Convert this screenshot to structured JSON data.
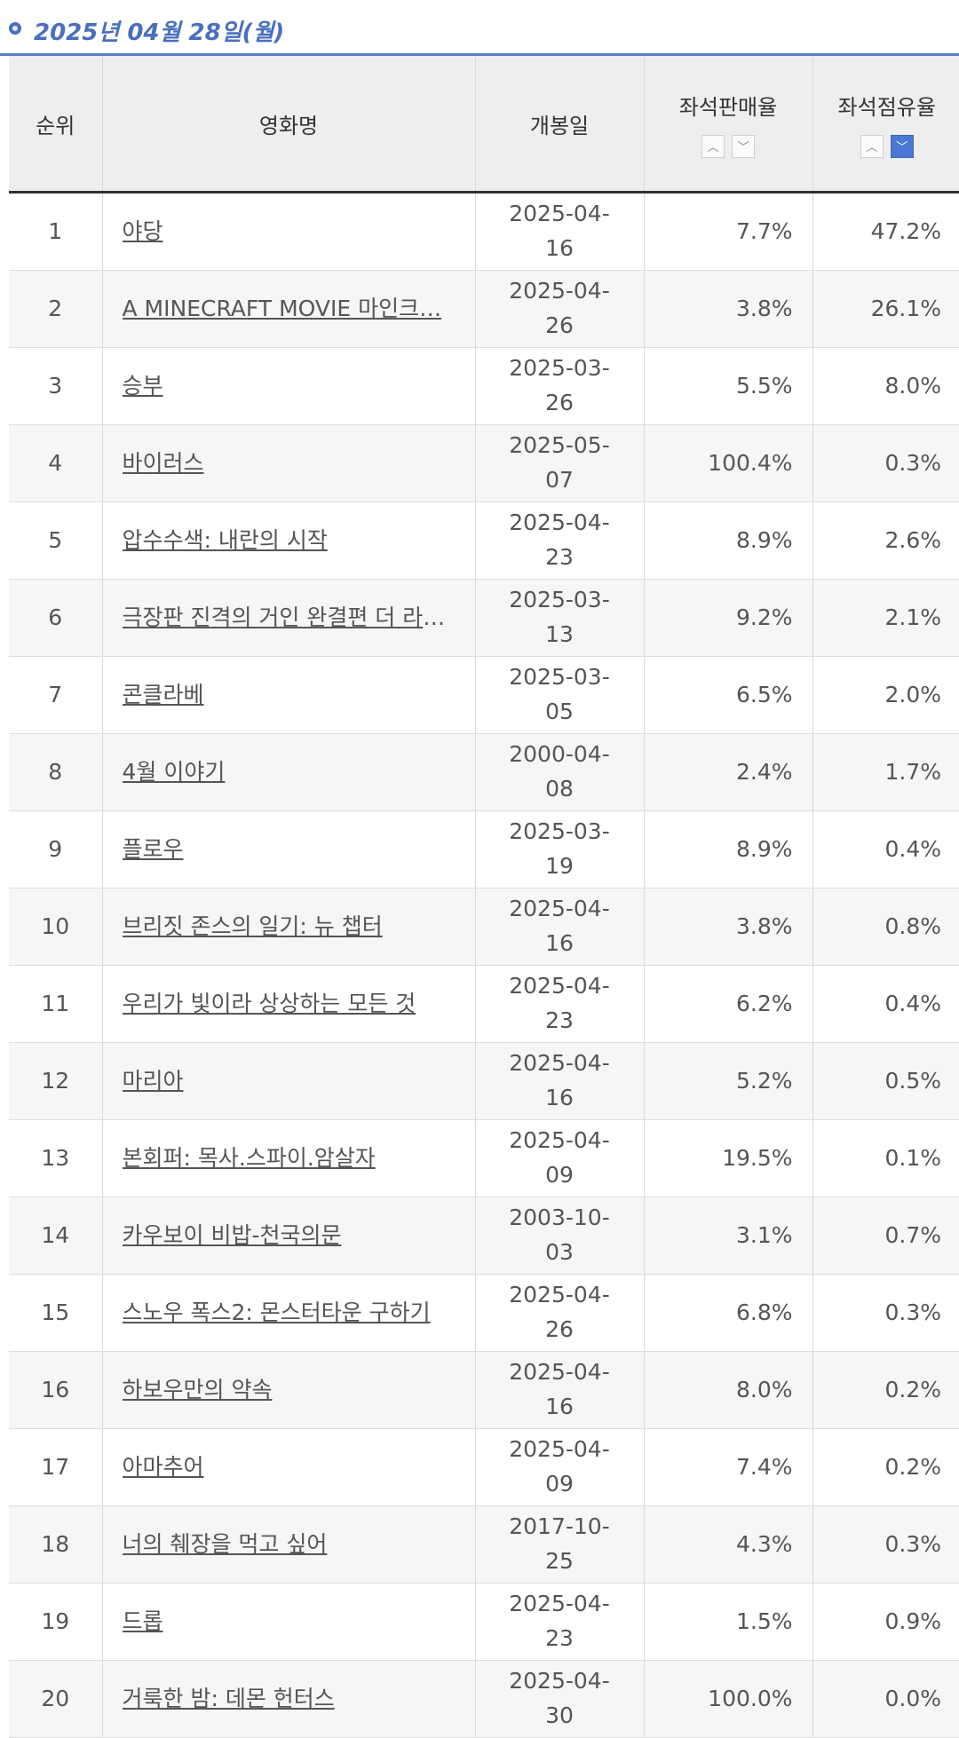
{
  "header": {
    "date": "2025년 04월 28일(월)"
  },
  "columns": {
    "rank": "순위",
    "title": "영화명",
    "open": "개봉일",
    "sales": "좌석판매율",
    "share": "좌석점유율"
  },
  "colors": {
    "accent": "#4a6fbf",
    "active_sort": "#4a78d4"
  },
  "icons": {
    "sort_up": "chevron-up-icon",
    "sort_down": "chevron-down-icon"
  },
  "active_sort": {
    "column": "좌석점유율",
    "direction": "down"
  },
  "rows": [
    {
      "rank": "1",
      "title": "야당",
      "open": "2025-04-16",
      "sales": "7.7%",
      "share": "47.2%"
    },
    {
      "rank": "2",
      "title": "A MINECRAFT MOVIE 마인크…",
      "open": "2025-04-26",
      "sales": "3.8%",
      "share": "26.1%"
    },
    {
      "rank": "3",
      "title": "승부",
      "open": "2025-03-26",
      "sales": "5.5%",
      "share": "8.0%"
    },
    {
      "rank": "4",
      "title": "바이러스",
      "open": "2025-05-07",
      "sales": "100.4%",
      "share": "0.3%"
    },
    {
      "rank": "5",
      "title": "압수수색: 내란의 시작",
      "open": "2025-04-23",
      "sales": "8.9%",
      "share": "2.6%"
    },
    {
      "rank": "6",
      "title": "극장판 진격의 거인 완결편 더 라스…",
      "open": "2025-03-13",
      "sales": "9.2%",
      "share": "2.1%"
    },
    {
      "rank": "7",
      "title": "콘클라베",
      "open": "2025-03-05",
      "sales": "6.5%",
      "share": "2.0%"
    },
    {
      "rank": "8",
      "title": "4월 이야기",
      "open": "2000-04-08",
      "sales": "2.4%",
      "share": "1.7%"
    },
    {
      "rank": "9",
      "title": "플로우",
      "open": "2025-03-19",
      "sales": "8.9%",
      "share": "0.4%"
    },
    {
      "rank": "10",
      "title": "브리짓 존스의 일기: 뉴 챕터",
      "open": "2025-04-16",
      "sales": "3.8%",
      "share": "0.8%"
    },
    {
      "rank": "11",
      "title": "우리가 빛이라 상상하는 모든 것",
      "open": "2025-04-23",
      "sales": "6.2%",
      "share": "0.4%"
    },
    {
      "rank": "12",
      "title": "마리아",
      "open": "2025-04-16",
      "sales": "5.2%",
      "share": "0.5%"
    },
    {
      "rank": "13",
      "title": "본회퍼: 목사.스파이.암살자",
      "open": "2025-04-09",
      "sales": "19.5%",
      "share": "0.1%"
    },
    {
      "rank": "14",
      "title": "카우보이 비밥-천국의문",
      "open": "2003-10-03",
      "sales": "3.1%",
      "share": "0.7%"
    },
    {
      "rank": "15",
      "title": "스노우 폭스2: 몬스터타운 구하기",
      "open": "2025-04-26",
      "sales": "6.8%",
      "share": "0.3%"
    },
    {
      "rank": "16",
      "title": "하보우만의 약속",
      "open": "2025-04-16",
      "sales": "8.0%",
      "share": "0.2%"
    },
    {
      "rank": "17",
      "title": "아마추어",
      "open": "2025-04-09",
      "sales": "7.4%",
      "share": "0.2%"
    },
    {
      "rank": "18",
      "title": "너의 췌장을 먹고 싶어",
      "open": "2017-10-25",
      "sales": "4.3%",
      "share": "0.3%"
    },
    {
      "rank": "19",
      "title": "드롭",
      "open": "2025-04-23",
      "sales": "1.5%",
      "share": "0.9%"
    },
    {
      "rank": "20",
      "title": "거룩한 밤: 데몬 헌터스",
      "open": "2025-04-30",
      "sales": "100.0%",
      "share": "0.0%"
    }
  ]
}
